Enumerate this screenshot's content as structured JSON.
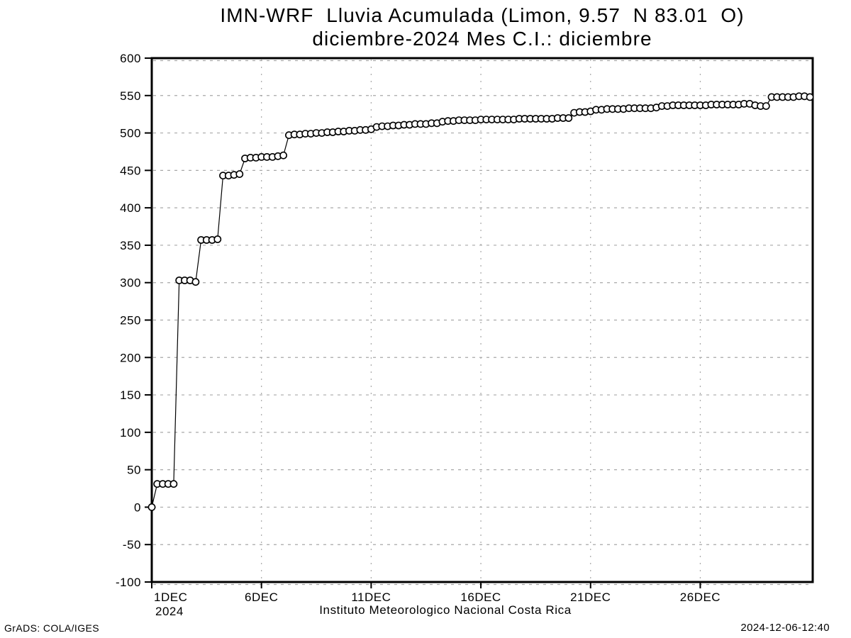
{
  "header": {
    "title_line1": "IMN-WRF  Lluvia Acumulada (Limon, 9.57  N 83.01  O)",
    "title_line2": "diciembre-2024 Mes C.I.: diciembre"
  },
  "footer": {
    "caption": "Instituto Meteorologico Nacional Costa Rica",
    "credit": "GrADS: COLA/IGES",
    "timestamp": "2024-12-06-12:40"
  },
  "chart_data": {
    "type": "line",
    "title": "IMN-WRF Lluvia Acumulada (Limon, 9.57 N 83.01 O) diciembre-2024 Mes C.I.: diciembre",
    "xlabel": "",
    "ylabel": "",
    "ylim": [
      -100,
      600
    ],
    "ytick_step": 50,
    "x_range_days": [
      0,
      30.125
    ],
    "xticks": [
      {
        "day": 0,
        "label": "1DEC",
        "sublabel": "2024"
      },
      {
        "day": 5,
        "label": "6DEC"
      },
      {
        "day": 10,
        "label": "11DEC"
      },
      {
        "day": 15,
        "label": "16DEC"
      },
      {
        "day": 20,
        "label": "21DEC"
      },
      {
        "day": 25,
        "label": "26DEC"
      }
    ],
    "grid": true,
    "legend_position": "none",
    "marker": "open-circle",
    "colors": {
      "line": "#000000",
      "grid": "#a8a8a8",
      "background": "#ffffff",
      "text": "#000000"
    },
    "series": [
      {
        "name": "lluvia_acumulada_mm",
        "start": "1DEC2024 00Z",
        "step_hours": 6,
        "values": [
          0,
          31,
          31,
          31,
          31,
          303,
          303,
          303,
          301,
          357,
          357,
          357,
          358,
          443,
          443,
          444,
          445,
          466,
          467,
          467,
          468,
          468,
          468,
          469,
          470,
          497,
          498,
          498,
          499,
          499,
          500,
          500,
          501,
          501,
          502,
          502,
          503,
          503,
          504,
          504,
          505,
          508,
          509,
          509,
          510,
          510,
          511,
          511,
          512,
          512,
          512,
          513,
          513,
          515,
          516,
          516,
          517,
          517,
          517,
          517,
          518,
          518,
          518,
          518,
          518,
          518,
          518,
          519,
          519,
          519,
          519,
          519,
          519,
          519,
          520,
          520,
          520,
          527,
          528,
          528,
          529,
          531,
          531,
          532,
          532,
          532,
          532,
          533,
          533,
          533,
          533,
          533,
          534,
          536,
          536,
          537,
          537,
          537,
          537,
          537,
          537,
          537,
          538,
          538,
          538,
          538,
          538,
          538,
          539,
          539,
          537,
          536,
          536,
          548,
          548,
          548,
          548,
          548,
          549,
          549,
          548
        ]
      }
    ]
  }
}
